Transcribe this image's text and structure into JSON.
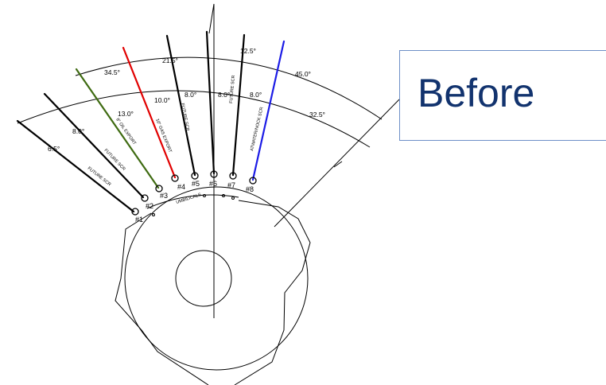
{
  "label": {
    "text": "Before"
  },
  "colors": {
    "red": "#e10000",
    "green": "#3f6b12",
    "blue": "#1c1ce6",
    "black": "#000000",
    "box_border": "#6d8fc7",
    "box_text": "#12336e"
  },
  "slots": [
    {
      "id": "#1",
      "riser_label": "FUTURE SCR",
      "color": "#000000"
    },
    {
      "id": "#2",
      "riser_label": "FUTURE SCR",
      "color": "#000000"
    },
    {
      "id": "#3",
      "riser_label": "8\" OIL EXPORT",
      "color": "#3f6b12"
    },
    {
      "id": "#4",
      "riser_label": "10\" GAS EXPORT",
      "color": "#e10000"
    },
    {
      "id": "#5",
      "riser_label": "FUTURE SCR",
      "color": "#000000"
    },
    {
      "id": "#6",
      "riser_label": "",
      "color": "#000000"
    },
    {
      "id": "#7",
      "riser_label": "FUTURE SCR",
      "color": "#000000"
    },
    {
      "id": "#8",
      "riser_label": "ATWATER/NOCK SCR",
      "color": "#1c1ce6"
    }
  ],
  "angles_inner": [
    "6.5°",
    "8.0°",
    "13.0°",
    "10.0°",
    "8.0°",
    "8.0°",
    "8.0°",
    "32.5°"
  ],
  "angles_outer": [
    "34.5°",
    "21.5°",
    "12.5°",
    "45.0°"
  ],
  "umbilicals_label": "UMBILICALS"
}
